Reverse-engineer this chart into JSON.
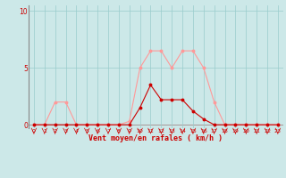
{
  "x_values": [
    0,
    1,
    2,
    3,
    4,
    5,
    6,
    7,
    8,
    9,
    10,
    11,
    12,
    13,
    14,
    15,
    16,
    17,
    18,
    19,
    20,
    21,
    22,
    23
  ],
  "moyen": [
    0,
    0,
    0,
    0,
    0,
    0,
    0,
    0,
    0,
    0,
    1.5,
    3.5,
    2.2,
    2.2,
    2.2,
    1.2,
    0.5,
    0,
    0,
    0,
    0,
    0,
    0,
    0
  ],
  "rafales": [
    0,
    0,
    2,
    2,
    0,
    0,
    0,
    0,
    0,
    0.3,
    5,
    6.5,
    6.5,
    5,
    6.5,
    6.5,
    5,
    2,
    0,
    0,
    0,
    0,
    0,
    0
  ],
  "bg_color": "#cce8e8",
  "grid_color": "#99cccc",
  "line_moyen_color": "#cc0000",
  "line_rafales_color": "#ff9999",
  "xlabel": "Vent moyen/en rafales ( km/h )",
  "ylabel_ticks": [
    0,
    5,
    10
  ],
  "ylim": [
    -0.3,
    10.5
  ],
  "xlim": [
    -0.5,
    23.5
  ]
}
